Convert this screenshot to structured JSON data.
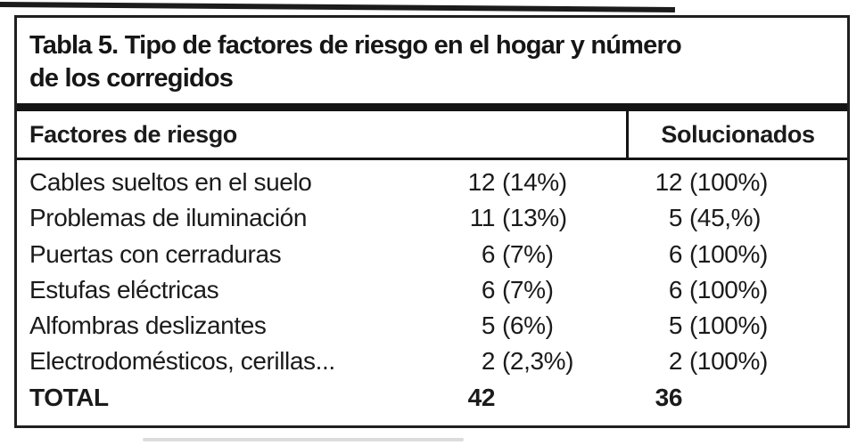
{
  "table": {
    "title_line1": "Tabla 5. Tipo de factores de riesgo en el hogar y número",
    "title_line2": "de los corregidos",
    "columns": {
      "factors": "Factores de riesgo",
      "solved": "Solucionados"
    },
    "rows": [
      {
        "factor": "Cables sueltos en el suelo",
        "count": "12",
        "pct": "(14%)",
        "solved_count": "12",
        "solved_pct": "(100%)"
      },
      {
        "factor": "Problemas de iluminación",
        "count": "11",
        "pct": "(13%)",
        "solved_count": "5",
        "solved_pct": "(45,%)"
      },
      {
        "factor": "Puertas con cerraduras",
        "count": "6",
        "pct": "(7%)",
        "solved_count": "6",
        "solved_pct": "(100%)"
      },
      {
        "factor": "Estufas eléctricas",
        "count": "6",
        "pct": "(7%)",
        "solved_count": "6",
        "solved_pct": "(100%)"
      },
      {
        "factor": "Alfombras deslizantes",
        "count": "5",
        "pct": "(6%)",
        "solved_count": "5",
        "solved_pct": "(100%)"
      },
      {
        "factor": "Electrodomésticos, cerillas...",
        "count": "2",
        "pct": "(2,3%)",
        "solved_count": "2",
        "solved_pct": "(100%)"
      }
    ],
    "total": {
      "label": "TOTAL",
      "count": "42",
      "solved_count": "36"
    }
  },
  "colors": {
    "ink": "#1b1b1b",
    "rule": "#141414",
    "paper": "#ffffff"
  }
}
